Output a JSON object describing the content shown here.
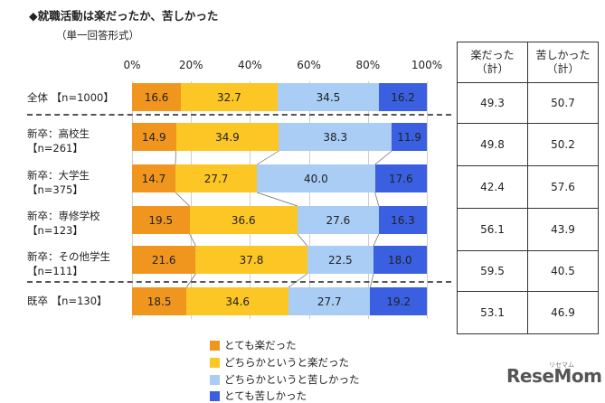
{
  "title": "◆就職活動は楽だったか、苦しかった",
  "subtitle": "（単一回答形式）",
  "chart_data": {
    "type": "bar",
    "orientation": "horizontal-stacked-100",
    "xlim": [
      0,
      100
    ],
    "ticks": [
      "0%",
      "20%",
      "40%",
      "60%",
      "80%",
      "100%"
    ],
    "categories": [
      [
        "全体 【n=1000】"
      ],
      [
        "新卒：高校生",
        "【n=261】"
      ],
      [
        "新卒：大学生",
        "【n=375】"
      ],
      [
        "新卒：専修学校",
        "【n=123】"
      ],
      [
        "新卒：その他学生",
        "【n=111】"
      ],
      [
        "既卒 【n=130】"
      ]
    ],
    "series": [
      {
        "name": "とても楽だった",
        "color": "#f0961e",
        "values": [
          16.6,
          14.9,
          14.7,
          19.5,
          21.6,
          18.5
        ]
      },
      {
        "name": "どちらかというと楽だった",
        "color": "#fcc624",
        "values": [
          32.7,
          34.9,
          27.7,
          36.6,
          37.8,
          34.6
        ]
      },
      {
        "name": "どちらかというと苦しかった",
        "color": "#a9cdf5",
        "values": [
          34.5,
          38.3,
          40.0,
          27.6,
          22.5,
          27.7
        ]
      },
      {
        "name": "とても苦しかった",
        "color": "#3a5fe0",
        "values": [
          16.2,
          11.9,
          17.6,
          16.3,
          18.0,
          19.2
        ]
      }
    ],
    "table": {
      "headers": [
        [
          "楽だった",
          "（計）"
        ],
        [
          "苦しかった",
          "（計）"
        ]
      ],
      "rows": [
        [
          "49.3",
          "50.7"
        ],
        [
          "49.8",
          "50.2"
        ],
        [
          "42.4",
          "57.6"
        ],
        [
          "56.1",
          "43.9"
        ],
        [
          "59.5",
          "40.5"
        ],
        [
          "53.1",
          "46.9"
        ]
      ]
    }
  },
  "logo": {
    "text": "ReseMom",
    "small": "リセマム"
  }
}
